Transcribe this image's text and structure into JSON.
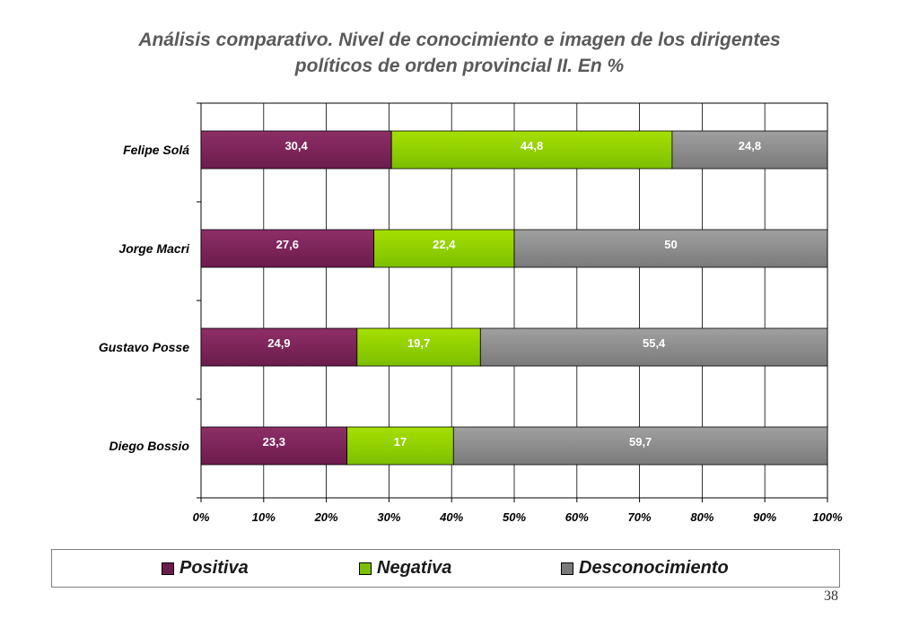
{
  "title": {
    "line1": "Análisis comparativo. Nivel de conocimiento e imagen de los dirigentes",
    "line2": "políticos de orden provincial II.  En %"
  },
  "page_number": "38",
  "colors": {
    "positiva": "#6b1c4c",
    "positiva_top": "#8e2e68",
    "negativa": "#7cbf00",
    "negativa_top": "#a6e000",
    "desconocimiento": "#7a7a7a",
    "desconocimiento_top": "#a0a0a0",
    "grid": "#000000",
    "label_text": "#ffffff"
  },
  "chart_data": {
    "type": "bar",
    "orientation": "horizontal",
    "stacked": "percent",
    "categories": [
      "Felipe Solá",
      "Jorge Macri",
      "Gustavo Posse",
      "Diego Bossio"
    ],
    "series": [
      {
        "name": "Positiva",
        "values": [
          30.4,
          27.6,
          24.9,
          23.3
        ],
        "labels": [
          "30,4",
          "27,6",
          "24,9",
          "23,3"
        ]
      },
      {
        "name": "Negativa",
        "values": [
          44.8,
          22.4,
          19.7,
          17
        ],
        "labels": [
          "44,8",
          "22,4",
          "19,7",
          "17"
        ]
      },
      {
        "name": "Desconocimiento",
        "values": [
          24.8,
          50,
          55.4,
          59.7
        ],
        "labels": [
          "24,8",
          "50",
          "55,4",
          "59,7"
        ]
      }
    ],
    "xlim": [
      0,
      100
    ],
    "xticks": [
      "0%",
      "10%",
      "20%",
      "30%",
      "40%",
      "50%",
      "60%",
      "70%",
      "80%",
      "90%",
      "100%"
    ],
    "grid": true,
    "legend": "bottom"
  }
}
